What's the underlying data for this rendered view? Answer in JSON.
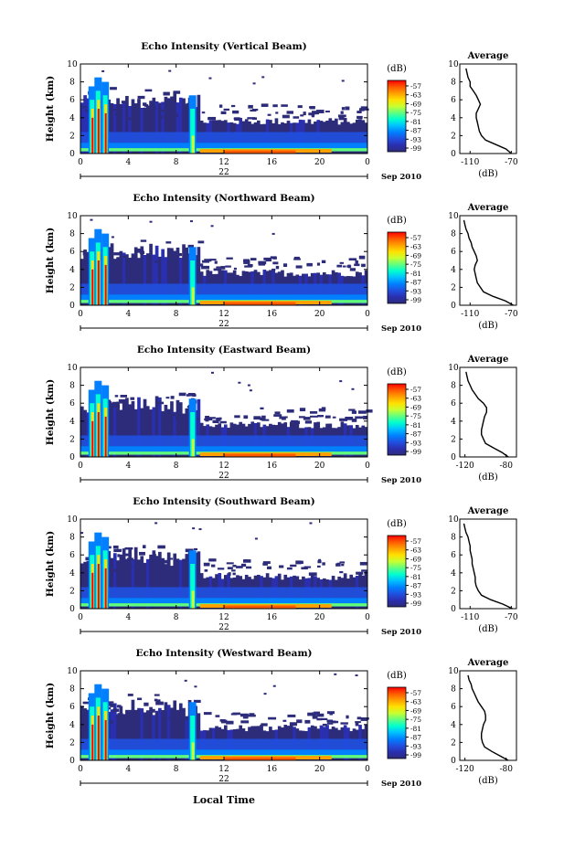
{
  "figure": {
    "common_xlabel": "Local Time",
    "date_label": "Sep 2010",
    "colorbar_unit": "(dB)",
    "colorbar_ticks": [
      "-57",
      "-63",
      "-69",
      "-75",
      "-81",
      "-87",
      "-93",
      "-99"
    ],
    "colorbar_colors": [
      "#ff0000",
      "#ff5a00",
      "#ffa000",
      "#ffe000",
      "#c8ff30",
      "#60ff80",
      "#00ffd0",
      "#00c0ff",
      "#0080ff",
      "#2050e0",
      "#2a2fb0",
      "#2c2c7a"
    ],
    "profile_title": "Average",
    "profile_xunit": "(dB)",
    "height_label": "Height (km)"
  },
  "chart_data": [
    {
      "type": "heatmap",
      "title": "Echo Intensity (Vertical Beam)",
      "ylabel": "Height (km)",
      "xlabel": "Local Time",
      "x_ticks": [
        "0",
        "4",
        "8",
        "12",
        "16",
        "20",
        "0"
      ],
      "y_ticks": [
        "0",
        "2",
        "4",
        "6",
        "8",
        "10"
      ],
      "day_label": "22",
      "xlim": [
        0,
        24
      ],
      "ylim": [
        0,
        10
      ],
      "colorbar_range_db": [
        -99,
        -57
      ],
      "profile": {
        "title": "Average",
        "xlabel": "(dB)",
        "xticks": [
          "-110",
          "-70"
        ],
        "xlim": [
          -120,
          -65
        ],
        "height_km": [
          0.0,
          0.5,
          1.0,
          1.5,
          2.0,
          2.5,
          3.0,
          3.5,
          4.0,
          4.5,
          5.0,
          5.5,
          6.0,
          6.5,
          7.0,
          7.5,
          8.0,
          8.5,
          9.0,
          9.5
        ],
        "db": [
          -70,
          -75,
          -85,
          -95,
          -99,
          -101,
          -102,
          -103,
          -104,
          -104,
          -102,
          -100,
          -102,
          -104,
          -107,
          -110,
          -110,
          -112,
          -113,
          -114
        ]
      }
    },
    {
      "type": "heatmap",
      "title": "Echo Intensity (Northward Beam)",
      "ylabel": "Height (km)",
      "xlabel": "Local Time",
      "x_ticks": [
        "0",
        "4",
        "8",
        "12",
        "16",
        "20",
        "0"
      ],
      "y_ticks": [
        "0",
        "2",
        "4",
        "6",
        "8",
        "10"
      ],
      "day_label": "22",
      "xlim": [
        0,
        24
      ],
      "ylim": [
        0,
        10
      ],
      "colorbar_range_db": [
        -99,
        -57
      ],
      "profile": {
        "title": "Average",
        "xlabel": "(dB)",
        "xticks": [
          "-110",
          "-70"
        ],
        "xlim": [
          -120,
          -65
        ],
        "height_km": [
          0.0,
          0.5,
          1.0,
          1.5,
          2.0,
          2.5,
          3.0,
          3.5,
          4.0,
          4.5,
          5.0,
          5.5,
          6.0,
          6.5,
          7.0,
          7.5,
          8.0,
          8.5,
          9.0,
          9.5
        ],
        "db": [
          -68,
          -76,
          -88,
          -97,
          -100,
          -103,
          -104,
          -105,
          -106,
          -105,
          -103,
          -104,
          -106,
          -108,
          -109,
          -111,
          -112,
          -114,
          -115,
          -116
        ]
      }
    },
    {
      "type": "heatmap",
      "title": "Echo Intensity (Eastward Beam)",
      "ylabel": "Height (km)",
      "xlabel": "Local Time",
      "x_ticks": [
        "0",
        "4",
        "8",
        "12",
        "16",
        "20",
        "0"
      ],
      "y_ticks": [
        "0",
        "2",
        "4",
        "6",
        "8",
        "10"
      ],
      "day_label": "22",
      "xlim": [
        0,
        24
      ],
      "ylim": [
        0,
        10
      ],
      "colorbar_range_db": [
        -99,
        -57
      ],
      "profile": {
        "title": "Average",
        "xlabel": "(dB)",
        "xticks": [
          "-120",
          "-80"
        ],
        "xlim": [
          -125,
          -70
        ],
        "height_km": [
          0.0,
          0.5,
          1.0,
          1.5,
          2.0,
          2.5,
          3.0,
          3.5,
          4.0,
          4.5,
          5.0,
          5.5,
          6.0,
          6.5,
          7.0,
          7.5,
          8.0,
          8.5,
          9.0,
          9.5
        ],
        "db": [
          -78,
          -84,
          -92,
          -100,
          -102,
          -104,
          -104,
          -103,
          -102,
          -101,
          -99,
          -99,
          -102,
          -107,
          -110,
          -113,
          -115,
          -117,
          -118,
          -119
        ]
      }
    },
    {
      "type": "heatmap",
      "title": "Echo Intensity (Southward Beam)",
      "ylabel": "Height (km)",
      "xlabel": "Local Time",
      "x_ticks": [
        "0",
        "4",
        "8",
        "12",
        "16",
        "20",
        "0"
      ],
      "y_ticks": [
        "0",
        "2",
        "4",
        "6",
        "8",
        "10"
      ],
      "day_label": "22",
      "xlim": [
        0,
        24
      ],
      "ylim": [
        0,
        10
      ],
      "colorbar_range_db": [
        -99,
        -57
      ],
      "profile": {
        "title": "Average",
        "xlabel": "(dB)",
        "xticks": [
          "-110",
          "-70"
        ],
        "xlim": [
          -120,
          -65
        ],
        "height_km": [
          0.0,
          0.5,
          1.0,
          1.5,
          2.0,
          2.5,
          3.0,
          3.5,
          4.0,
          4.5,
          5.0,
          5.5,
          6.0,
          6.5,
          7.0,
          7.5,
          8.0,
          8.5,
          9.0,
          9.5
        ],
        "db": [
          -69,
          -78,
          -90,
          -99,
          -102,
          -104,
          -105,
          -105,
          -106,
          -107,
          -108,
          -108,
          -109,
          -110,
          -110,
          -111,
          -112,
          -114,
          -115,
          -116
        ]
      }
    },
    {
      "type": "heatmap",
      "title": "Echo Intensity (Westward Beam)",
      "ylabel": "Height (km)",
      "xlabel": "Local Time",
      "x_ticks": [
        "0",
        "4",
        "8",
        "12",
        "16",
        "20",
        "0"
      ],
      "y_ticks": [
        "0",
        "2",
        "4",
        "6",
        "8",
        "10"
      ],
      "day_label": "22",
      "xlim": [
        0,
        24
      ],
      "ylim": [
        0,
        10
      ],
      "colorbar_range_db": [
        -99,
        -57
      ],
      "profile": {
        "title": "Average",
        "xlabel": "(dB)",
        "xticks": [
          "-120",
          "-80"
        ],
        "xlim": [
          -125,
          -70
        ],
        "height_km": [
          0.0,
          0.5,
          1.0,
          1.5,
          2.0,
          2.5,
          3.0,
          3.5,
          4.0,
          4.5,
          5.0,
          5.5,
          6.0,
          6.5,
          7.0,
          7.5,
          8.0,
          8.5,
          9.0,
          9.5
        ],
        "db": [
          -78,
          -86,
          -94,
          -101,
          -103,
          -104,
          -104,
          -103,
          -102,
          -100,
          -100,
          -101,
          -104,
          -107,
          -109,
          -111,
          -113,
          -114,
          -116,
          -117
        ]
      }
    }
  ]
}
